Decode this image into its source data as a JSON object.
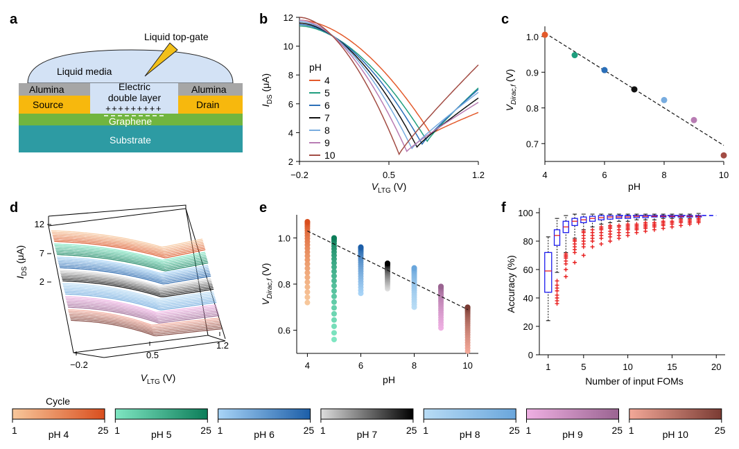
{
  "panel_labels": [
    "a",
    "b",
    "c",
    "d",
    "e",
    "f"
  ],
  "schematic": {
    "liquid_top_gate": "Liquid top-gate",
    "liquid_media": "Liquid media",
    "alumina": "Alumina",
    "source": "Source",
    "drain": "Drain",
    "edl_line1": "Electric",
    "edl_line2": "double layer",
    "plus_signs": "+++++++++",
    "graphene": "Graphene",
    "substrate": "Substrate",
    "colors": {
      "media": "#d3e2f5",
      "alumina": "#a6a6a6",
      "contact": "#f7b80d",
      "graphene": "#71b53f",
      "substrate": "#2d9ba3",
      "tip": "#f2c01a"
    }
  },
  "ph_colors": {
    "4": "#e35a2b",
    "5": "#1f9e7e",
    "6": "#2b6fb8",
    "7": "#111111",
    "8": "#78acdf",
    "9": "#b87cb3",
    "10": "#a24c44"
  },
  "colorbar": {
    "title": "Cycle",
    "min_label": "1",
    "max_label": "25",
    "bars": [
      {
        "label": "pH 4",
        "from": "#f7c79b",
        "to": "#d94e1e"
      },
      {
        "label": "pH 5",
        "from": "#7fe6c2",
        "to": "#0c7d59"
      },
      {
        "label": "pH 6",
        "from": "#a8d4f7",
        "to": "#1c5ea8"
      },
      {
        "label": "pH 7",
        "from": "#dddddd",
        "to": "#000000"
      },
      {
        "label": "pH 8",
        "from": "#b8dcf5",
        "to": "#6aa6dc"
      },
      {
        "label": "pH 9",
        "from": "#efb0e3",
        "to": "#9a6491"
      },
      {
        "label": "pH 10",
        "from": "#f3a898",
        "to": "#7a3b33"
      }
    ]
  },
  "chart_data": [
    {
      "panel": "b",
      "type": "line",
      "xlabel": "V",
      "xlabel_sub": "LTG",
      "xlabel_unit": " (V)",
      "ylabel": "I",
      "ylabel_sub": "DS",
      "ylabel_unit": " (μA)",
      "xlim": [
        -0.2,
        1.2
      ],
      "ylim": [
        2,
        12
      ],
      "xticks": [
        "-0.2",
        "0.5",
        "1.2"
      ],
      "yticks": [
        "2",
        "4",
        "6",
        "8",
        "10",
        "12"
      ],
      "legend_title": "pH",
      "series": [
        {
          "name": "4",
          "dirac": 0.83,
          "imin": 3.9,
          "left": 11.8,
          "right": 5.4
        },
        {
          "name": "5",
          "dirac": 0.8,
          "imin": 3.4,
          "left": 11.4,
          "right": 7.1
        },
        {
          "name": "6",
          "dirac": 0.76,
          "imin": 3.2,
          "left": 11.5,
          "right": 7.0
        },
        {
          "name": "7",
          "dirac": 0.72,
          "imin": 3.0,
          "left": 11.6,
          "right": 6.4
        },
        {
          "name": "8",
          "dirac": 0.68,
          "imin": 2.9,
          "left": 11.7,
          "right": 6.8
        },
        {
          "name": "9",
          "dirac": 0.64,
          "imin": 2.7,
          "left": 11.8,
          "right": 6.1
        },
        {
          "name": "10",
          "dirac": 0.58,
          "imin": 2.5,
          "left": 12.0,
          "right": 8.7
        }
      ]
    },
    {
      "panel": "c",
      "type": "scatter",
      "xlabel": "pH",
      "ylabel": "V",
      "ylabel_sub": "Dirac,f",
      "ylabel_unit": " (V)",
      "xlim": [
        4,
        10
      ],
      "ylim": [
        0.65,
        1.05
      ],
      "xticks": [
        "4",
        "6",
        "8",
        "10"
      ],
      "yticks": [
        "0.7",
        "0.8",
        "0.9",
        "1.0"
      ],
      "points": [
        {
          "x": 4,
          "y": 1.005
        },
        {
          "x": 5,
          "y": 0.948
        },
        {
          "x": 6,
          "y": 0.906
        },
        {
          "x": 7,
          "y": 0.852
        },
        {
          "x": 8,
          "y": 0.822
        },
        {
          "x": 9,
          "y": 0.766
        },
        {
          "x": 10,
          "y": 0.667
        }
      ],
      "fit": {
        "x": [
          4,
          10
        ],
        "y": [
          1.01,
          0.695
        ]
      }
    },
    {
      "panel": "d",
      "type": "line",
      "xlabel": "V",
      "xlabel_sub": "LTG",
      "xlabel_unit": " (V)",
      "ylabel": "I",
      "ylabel_sub": "DS",
      "ylabel_unit": " (μA)",
      "xticks": [
        "-0.2",
        "0.5",
        "1.2"
      ],
      "zticks": [
        "2",
        "7",
        "12"
      ]
    },
    {
      "panel": "e",
      "type": "scatter",
      "xlabel": "pH",
      "ylabel": "V",
      "ylabel_sub": "Dirac,f",
      "ylabel_unit": " (V)",
      "xlim": [
        3.6,
        10.4
      ],
      "ylim": [
        0.5,
        1.1
      ],
      "xticks": [
        "4",
        "6",
        "8",
        "10"
      ],
      "yticks": [
        "0.6",
        "0.8",
        "1.0"
      ],
      "groups": [
        {
          "ph": 4,
          "min": 0.72,
          "max": 1.07
        },
        {
          "ph": 5,
          "min": 0.56,
          "max": 1.0
        },
        {
          "ph": 6,
          "min": 0.76,
          "max": 0.96
        },
        {
          "ph": 7,
          "min": 0.78,
          "max": 0.89
        },
        {
          "ph": 8,
          "min": 0.7,
          "max": 0.87
        },
        {
          "ph": 9,
          "min": 0.61,
          "max": 0.79
        },
        {
          "ph": 10,
          "min": 0.51,
          "max": 0.7
        }
      ],
      "fit": {
        "x": [
          4,
          10
        ],
        "y": [
          1.03,
          0.69
        ]
      }
    },
    {
      "panel": "f",
      "type": "box",
      "xlabel": "Number of input FOMs",
      "ylabel": "Accuracy (%)",
      "xlim": [
        0,
        21
      ],
      "ylim": [
        0,
        100
      ],
      "xticks": [
        "1",
        "5",
        "10",
        "15",
        "20"
      ],
      "yticks": [
        "0",
        "20",
        "40",
        "60",
        "80",
        "100"
      ],
      "boxes": [
        {
          "n": 1,
          "wlo": 24,
          "q1": 44,
          "med": 59,
          "q3": 72,
          "whi": 83
        },
        {
          "n": 2,
          "wlo": 58,
          "q1": 77,
          "med": 84,
          "q3": 88,
          "whi": 96
        },
        {
          "n": 3,
          "wlo": 72,
          "q1": 86,
          "med": 90,
          "q3": 94,
          "whi": 98
        },
        {
          "n": 4,
          "wlo": 82,
          "q1": 91,
          "med": 94,
          "q3": 96,
          "whi": 99
        },
        {
          "n": 5,
          "wlo": 88,
          "q1": 93,
          "med": 95,
          "q3": 97,
          "whi": 99
        },
        {
          "n": 6,
          "wlo": 90,
          "q1": 94,
          "med": 96,
          "q3": 97.5,
          "whi": 99
        },
        {
          "n": 7,
          "wlo": 92,
          "q1": 95,
          "med": 96.5,
          "q3": 98,
          "whi": 99
        },
        {
          "n": 8,
          "wlo": 93,
          "q1": 95.5,
          "med": 97,
          "q3": 98,
          "whi": 99
        },
        {
          "n": 9,
          "wlo": 94,
          "q1": 96,
          "med": 97,
          "q3": 98,
          "whi": 99
        },
        {
          "n": 10,
          "wlo": 94,
          "q1": 96,
          "med": 97,
          "q3": 98,
          "whi": 99
        },
        {
          "n": 11,
          "wlo": 95,
          "q1": 96.5,
          "med": 97.5,
          "q3": 98,
          "whi": 99
        },
        {
          "n": 12,
          "wlo": 95,
          "q1": 96.5,
          "med": 97.5,
          "q3": 98,
          "whi": 99
        },
        {
          "n": 13,
          "wlo": 95,
          "q1": 97,
          "med": 97.5,
          "q3": 98,
          "whi": 99
        },
        {
          "n": 14,
          "wlo": 96,
          "q1": 97,
          "med": 97.5,
          "q3": 98,
          "whi": 99
        },
        {
          "n": 15,
          "wlo": 96,
          "q1": 97,
          "med": 97.5,
          "q3": 98,
          "whi": 99
        },
        {
          "n": 16,
          "wlo": 96,
          "q1": 97,
          "med": 97.5,
          "q3": 98,
          "whi": 99
        },
        {
          "n": 17,
          "wlo": 96,
          "q1": 97,
          "med": 97.5,
          "q3": 98,
          "whi": 99
        },
        {
          "n": 18,
          "wlo": 96,
          "q1": 97,
          "med": 97.5,
          "q3": 98,
          "whi": 99.5
        }
      ],
      "outliers": [
        {
          "n": 2,
          "vals": [
            36,
            38,
            40,
            42,
            45,
            47,
            49,
            52
          ]
        },
        {
          "n": 3,
          "vals": [
            55,
            60,
            64,
            66,
            68,
            69,
            70,
            71
          ]
        },
        {
          "n": 4,
          "vals": [
            65,
            72,
            74,
            76,
            78,
            80,
            81
          ]
        },
        {
          "n": 5,
          "vals": [
            70,
            76,
            78,
            80,
            82,
            84,
            86,
            87
          ]
        },
        {
          "n": 6,
          "vals": [
            76,
            80,
            82,
            84,
            86,
            88
          ]
        },
        {
          "n": 7,
          "vals": [
            78,
            82,
            84,
            86,
            88,
            89,
            90
          ]
        },
        {
          "n": 8,
          "vals": [
            80,
            83,
            85,
            87,
            89,
            90,
            91
          ]
        },
        {
          "n": 9,
          "vals": [
            82,
            84,
            86,
            88,
            90,
            91
          ]
        },
        {
          "n": 10,
          "vals": [
            84,
            86,
            88,
            89,
            90,
            91,
            92
          ]
        },
        {
          "n": 11,
          "vals": [
            86,
            88,
            89,
            90,
            91,
            92
          ]
        },
        {
          "n": 12,
          "vals": [
            87,
            89,
            90,
            91,
            92,
            93
          ]
        },
        {
          "n": 13,
          "vals": [
            88,
            90,
            91,
            92,
            93
          ]
        },
        {
          "n": 14,
          "vals": [
            89,
            91,
            92,
            93,
            94
          ]
        },
        {
          "n": 15,
          "vals": [
            90,
            92,
            93,
            94
          ]
        },
        {
          "n": 16,
          "vals": [
            91,
            93,
            94,
            95
          ]
        },
        {
          "n": 17,
          "vals": [
            92,
            93,
            94,
            95
          ]
        },
        {
          "n": 18,
          "vals": [
            93,
            94,
            95,
            96
          ]
        }
      ],
      "reference_line": 98
    }
  ]
}
